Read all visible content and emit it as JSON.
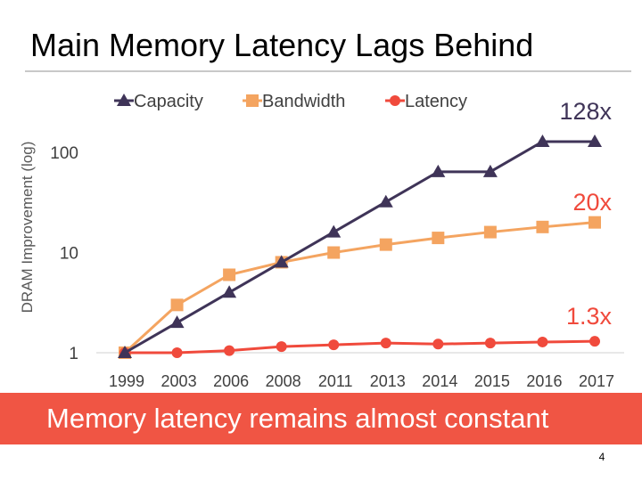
{
  "slide": {
    "title": "Main Memory Latency Lags Behind",
    "banner": "Memory latency remains almost constant",
    "page_number": "4"
  },
  "chart_data": {
    "type": "line",
    "title": "",
    "xlabel": "",
    "ylabel": "DRAM Improvement (log)",
    "y_scale": "log",
    "ylim": [
      1,
      128
    ],
    "yticks": [
      1,
      10,
      100
    ],
    "categories": [
      "1999",
      "2003",
      "2006",
      "2008",
      "2011",
      "2013",
      "2014",
      "2015",
      "2016",
      "2017"
    ],
    "grid": false,
    "legend_position": "top",
    "series": [
      {
        "name": "Capacity",
        "color": "#3f3458",
        "marker": "triangle",
        "values": [
          1,
          2,
          4,
          8,
          16,
          32,
          64,
          64,
          128,
          128
        ]
      },
      {
        "name": "Bandwidth",
        "color": "#f4a460",
        "marker": "square",
        "values": [
          1,
          3,
          6,
          8,
          10,
          12,
          14,
          16,
          18,
          20
        ]
      },
      {
        "name": "Latency",
        "color": "#f04a3c",
        "marker": "circle",
        "values": [
          1,
          1.0,
          1.05,
          1.15,
          1.2,
          1.25,
          1.22,
          1.25,
          1.28,
          1.3
        ]
      }
    ],
    "annotations": [
      "128x",
      "20x",
      "1.3x"
    ]
  }
}
